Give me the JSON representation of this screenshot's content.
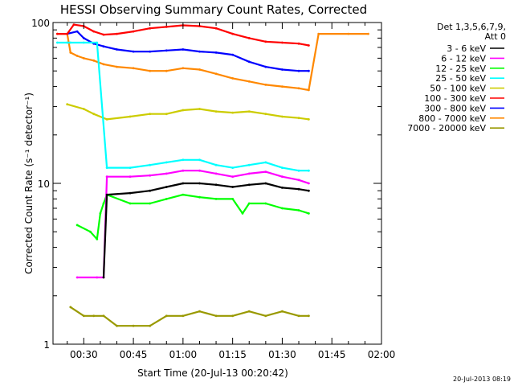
{
  "chart_data": {
    "type": "line",
    "title": "HESSI Observing Summary Count Rates, Corrected",
    "xlabel": "Start Time (20-Jul-13 00:20:42)",
    "ylabel": "Corrected Count Rate (s⁻¹ detector⁻¹)",
    "yscale": "log",
    "ylim": [
      1,
      100
    ],
    "xlim_minutes": [
      20.7,
      120
    ],
    "x_ticks": [
      {
        "minute": 30,
        "label": "00:30"
      },
      {
        "minute": 45,
        "label": "00:45"
      },
      {
        "minute": 60,
        "label": "01:00"
      },
      {
        "minute": 75,
        "label": "01:15"
      },
      {
        "minute": 90,
        "label": "01:30"
      },
      {
        "minute": 105,
        "label": "01:45"
      },
      {
        "minute": 120,
        "label": "02:00"
      }
    ],
    "y_ticks": [
      {
        "value": 1,
        "label": "1"
      },
      {
        "value": 10,
        "label": "10"
      },
      {
        "value": 100,
        "label": "100"
      }
    ],
    "legend": {
      "placement": "right",
      "header": [
        "Det 1,3,5,6,7,9,",
        "Att 0"
      ]
    },
    "series": [
      {
        "name": "3 - 6 keV",
        "color": "#000000",
        "x": [
          36,
          37,
          44,
          50,
          55,
          60,
          65,
          70,
          75,
          80,
          85,
          90,
          95,
          98
        ],
        "y": [
          2.6,
          8.5,
          8.7,
          9,
          9.5,
          10,
          10,
          9.8,
          9.5,
          9.8,
          10,
          9.4,
          9.2,
          9
        ]
      },
      {
        "name": "6 - 12 keV",
        "color": "#ff00ff",
        "x": [
          28,
          34,
          36,
          37,
          44,
          50,
          55,
          60,
          65,
          70,
          75,
          80,
          85,
          90,
          95,
          98
        ],
        "y": [
          2.6,
          2.6,
          2.6,
          11,
          11,
          11.2,
          11.5,
          12,
          12,
          11.5,
          11,
          11.5,
          11.8,
          11,
          10.5,
          10
        ]
      },
      {
        "name": "12 - 25 keV",
        "color": "#00ff00",
        "x": [
          28,
          32,
          34,
          35,
          36,
          37,
          44,
          50,
          55,
          60,
          65,
          70,
          75,
          78,
          80,
          85,
          90,
          95,
          98
        ],
        "y": [
          5.5,
          5,
          4.5,
          6.5,
          7.5,
          8.5,
          7.5,
          7.5,
          8,
          8.5,
          8.2,
          8,
          8,
          6.5,
          7.5,
          7.5,
          7,
          6.8,
          6.5
        ]
      },
      {
        "name": "25 - 50 keV",
        "color": "#00ffff",
        "x": [
          22,
          25,
          26,
          30,
          34,
          37,
          44,
          50,
          55,
          60,
          65,
          70,
          75,
          80,
          85,
          90,
          95,
          98
        ],
        "y": [
          75,
          75,
          75,
          75,
          75,
          12.5,
          12.5,
          13,
          13.5,
          14,
          14,
          13,
          12.5,
          13,
          13.5,
          12.5,
          12,
          12
        ]
      },
      {
        "name": "50 - 100 keV",
        "color": "#cccc00",
        "x": [
          25,
          30,
          33,
          37,
          44,
          50,
          55,
          60,
          65,
          70,
          75,
          80,
          85,
          90,
          95,
          98
        ],
        "y": [
          31,
          29,
          27,
          25,
          26,
          27,
          27,
          28.5,
          29,
          28,
          27.5,
          28,
          27,
          26,
          25.5,
          25
        ]
      },
      {
        "name": "100 - 300 keV",
        "color": "#ff0000",
        "x": [
          22,
          25,
          27,
          30,
          33,
          36,
          40,
          45,
          50,
          55,
          60,
          65,
          70,
          75,
          80,
          85,
          90,
          95,
          98
        ],
        "y": [
          85,
          85,
          97,
          95,
          88,
          84,
          85,
          88,
          92,
          94,
          96,
          95,
          92,
          85,
          80,
          76,
          75,
          74,
          72
        ]
      },
      {
        "name": "300 - 800 keV",
        "color": "#0000ff",
        "x": [
          25,
          28,
          30,
          33,
          36,
          40,
          45,
          50,
          55,
          60,
          65,
          70,
          75,
          80,
          85,
          90,
          95,
          98
        ],
        "y": [
          85,
          88,
          80,
          74,
          71,
          68,
          66,
          66,
          67,
          68,
          66,
          65,
          63,
          57,
          53,
          51,
          50,
          50
        ]
      },
      {
        "name": "800 - 7000 keV",
        "color": "#ff8800",
        "x": [
          22,
          25,
          26,
          28,
          30,
          33,
          36,
          40,
          45,
          50,
          55,
          60,
          65,
          70,
          75,
          80,
          85,
          90,
          95,
          98,
          101,
          110,
          116
        ],
        "y": [
          85,
          85,
          65,
          62,
          60,
          58,
          55,
          53,
          52,
          50,
          50,
          52,
          51,
          48,
          45,
          43,
          41,
          40,
          39,
          38,
          85,
          85,
          85
        ]
      },
      {
        "name": "7000 - 20000 keV",
        "color": "#999900",
        "x": [
          26,
          30,
          33,
          36,
          40,
          45,
          50,
          55,
          60,
          65,
          70,
          75,
          80,
          85,
          90,
          95,
          98
        ],
        "y": [
          1.7,
          1.5,
          1.5,
          1.5,
          1.3,
          1.3,
          1.3,
          1.5,
          1.5,
          1.6,
          1.5,
          1.5,
          1.6,
          1.5,
          1.6,
          1.5,
          1.5
        ]
      }
    ]
  },
  "timestamp": "20-Jul-2013 08:19"
}
